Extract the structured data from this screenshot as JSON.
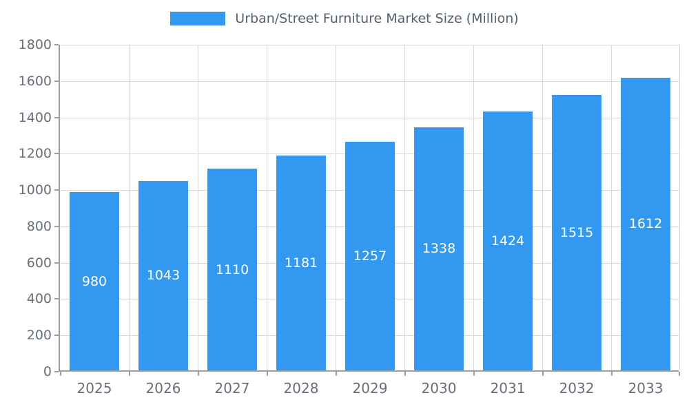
{
  "chart_data": {
    "type": "bar",
    "title": "Urban/Street Furniture Market Size (Million)",
    "categories": [
      "2025",
      "2026",
      "2027",
      "2028",
      "2029",
      "2030",
      "2031",
      "2032",
      "2033"
    ],
    "values": [
      980,
      1043,
      1110,
      1181,
      1257,
      1338,
      1424,
      1515,
      1612
    ],
    "xlabel": "",
    "ylabel": "",
    "ylim": [
      0,
      1800
    ],
    "ytick_step": 200,
    "grid": true,
    "legend_position": "top",
    "value_labels": "inside-center"
  },
  "colors": {
    "bar": "#3398f0",
    "title_text": "#53606e",
    "axis_text": "#666e77",
    "grid": "#d9d9d9",
    "axis_line": "#9aa0a6",
    "bar_label": "#ffffff",
    "background": "#ffffff"
  }
}
